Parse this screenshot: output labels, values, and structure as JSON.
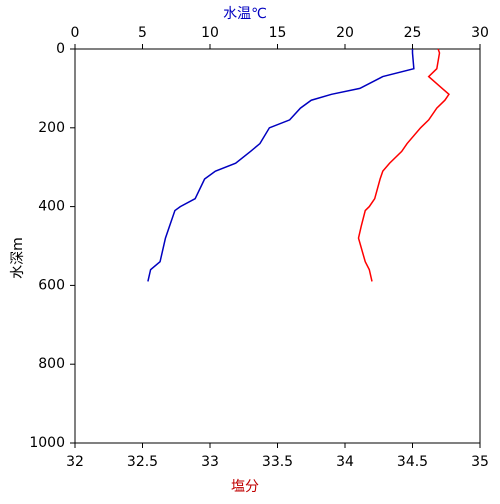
{
  "chart_data": {
    "type": "line",
    "x_label_top": "水温℃",
    "x_label_bottom": "塩分",
    "y_label": "水深m",
    "x_label_top_color": "#0000c0",
    "x_label_bottom_color": "#c00000",
    "depth": [
      0,
      10,
      50,
      70,
      100,
      115,
      130,
      150,
      180,
      200,
      240,
      260,
      290,
      310,
      330,
      380,
      400,
      410,
      450,
      480,
      540,
      560,
      590
    ],
    "ylim": [
      0,
      1000
    ],
    "y_inverted": true,
    "yticks": [
      0,
      200,
      400,
      600,
      800,
      1000
    ],
    "xlim": [
      32,
      35
    ],
    "xticks": [
      32,
      32.5,
      33,
      33.5,
      34,
      34.5,
      35
    ],
    "x2lim": [
      0,
      30
    ],
    "x2ticks": [
      0,
      5,
      10,
      15,
      20,
      25,
      30
    ],
    "series": [
      {
        "color": "#0000c0",
        "axis": "x2",
        "values": [
          25.0,
          25.0,
          25.1,
          22.8,
          21.1,
          19.0,
          17.5,
          16.7,
          15.9,
          14.4,
          13.7,
          13.0,
          11.9,
          10.4,
          9.6,
          8.9,
          7.8,
          7.4,
          7.0,
          6.7,
          6.3,
          5.6,
          5.4
        ]
      },
      {
        "color": "#ff0000",
        "axis": "x",
        "values": [
          34.69,
          34.7,
          34.68,
          34.62,
          34.72,
          34.77,
          34.74,
          34.68,
          34.62,
          34.56,
          34.46,
          34.42,
          34.33,
          34.28,
          34.26,
          34.22,
          34.18,
          34.15,
          34.12,
          34.1,
          34.15,
          34.18,
          34.2
        ]
      }
    ]
  }
}
